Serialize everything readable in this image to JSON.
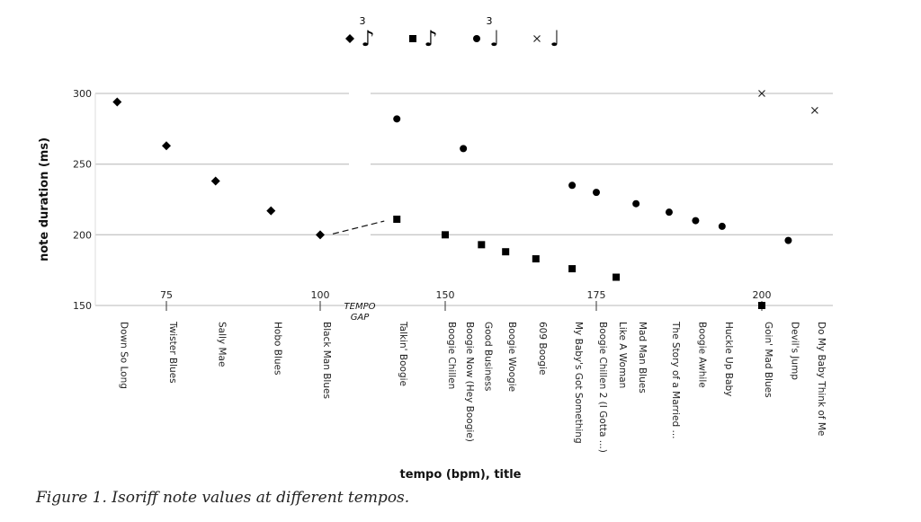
{
  "chart_data": {
    "type": "scatter",
    "title": "",
    "xlabel": "tempo (bpm), title",
    "ylabel": "note duration (ms)",
    "ylim": [
      150,
      300
    ],
    "yticks": [
      150,
      200,
      250,
      300
    ],
    "xticks": [
      75,
      100,
      150,
      175,
      200
    ],
    "gap_label": [
      "TEMPO",
      "GAP"
    ],
    "grid": true,
    "legend": {
      "placement": "top-center",
      "entries": [
        {
          "series": "triplet-eighth",
          "marker": "diamond",
          "note": "eighth",
          "tuplet": "3"
        },
        {
          "series": "eighth",
          "marker": "square",
          "note": "eighth",
          "tuplet": ""
        },
        {
          "series": "triplet-quarter",
          "marker": "circle",
          "note": "quarter",
          "tuplet": "3"
        },
        {
          "series": "quarter",
          "marker": "x",
          "note": "quarter",
          "tuplet": ""
        }
      ]
    },
    "songs": [
      {
        "title": "Down So Long",
        "tempo": 67
      },
      {
        "title": "Twister Blues",
        "tempo": 75
      },
      {
        "title": "Sally Mae",
        "tempo": 83
      },
      {
        "title": "Hobo Blues",
        "tempo": 92
      },
      {
        "title": "Black Man Blues",
        "tempo": 100
      },
      {
        "title": "Talkin' Boogie",
        "tempo": 142
      },
      {
        "title": "Boogie Chillen",
        "tempo": 150
      },
      {
        "title": "Boogie Now (Hey Boogie)",
        "tempo": 153
      },
      {
        "title": "Good Business",
        "tempo": 156
      },
      {
        "title": "Boogie Woogie",
        "tempo": 160
      },
      {
        "title": "609 Boogie",
        "tempo": 165
      },
      {
        "title": "My Baby's Got Something",
        "tempo": 171
      },
      {
        "title": "Boogie Chillen 2 (I Gotta ...)",
        "tempo": 175
      },
      {
        "title": "Like A Woman",
        "tempo": 178
      },
      {
        "title": "Mad Man Blues",
        "tempo": 181
      },
      {
        "title": "The Story of a Married ...",
        "tempo": 186
      },
      {
        "title": "Boogie Awhile",
        "tempo": 190
      },
      {
        "title": "Huckle Up Baby",
        "tempo": 194
      },
      {
        "title": "Goin' Mad Blues",
        "tempo": 200
      },
      {
        "title": "Devil's Jump",
        "tempo": 204
      },
      {
        "title": "Do My Baby Think of Me",
        "tempo": 208
      }
    ],
    "points": [
      {
        "song": "Down So Long",
        "marker": "diamond",
        "ms": 294
      },
      {
        "song": "Twister Blues",
        "marker": "diamond",
        "ms": 263
      },
      {
        "song": "Sally Mae",
        "marker": "diamond",
        "ms": 238
      },
      {
        "song": "Hobo Blues",
        "marker": "diamond",
        "ms": 217
      },
      {
        "song": "Black Man Blues",
        "marker": "diamond",
        "ms": 200
      },
      {
        "song": "Talkin' Boogie",
        "marker": "circle",
        "ms": 282
      },
      {
        "song": "Talkin' Boogie",
        "marker": "square",
        "ms": 211
      },
      {
        "song": "Boogie Chillen",
        "marker": "square",
        "ms": 200
      },
      {
        "song": "Boogie Now (Hey Boogie)",
        "marker": "circle",
        "ms": 261
      },
      {
        "song": "Good Business",
        "marker": "square",
        "ms": 193
      },
      {
        "song": "Boogie Woogie",
        "marker": "square",
        "ms": 188
      },
      {
        "song": "609 Boogie",
        "marker": "square",
        "ms": 183
      },
      {
        "song": "My Baby's Got Something",
        "marker": "circle",
        "ms": 235
      },
      {
        "song": "My Baby's Got Something",
        "marker": "square",
        "ms": 176
      },
      {
        "song": "Boogie Chillen 2 (I Gotta ...)",
        "marker": "circle",
        "ms": 230
      },
      {
        "song": "Like A Woman",
        "marker": "square",
        "ms": 170
      },
      {
        "song": "Mad Man Blues",
        "marker": "circle",
        "ms": 222
      },
      {
        "song": "The Story of a Married ...",
        "marker": "circle",
        "ms": 216
      },
      {
        "song": "Boogie Awhile",
        "marker": "circle",
        "ms": 210
      },
      {
        "song": "Huckle Up Baby",
        "marker": "circle",
        "ms": 206
      },
      {
        "song": "Goin' Mad Blues",
        "marker": "square",
        "ms": 150
      },
      {
        "song": "Goin' Mad Blues",
        "marker": "x",
        "ms": 300
      },
      {
        "song": "Devil's Jump",
        "marker": "circle",
        "ms": 196
      },
      {
        "song": "Do My Baby Think of Me",
        "marker": "x",
        "ms": 288
      }
    ]
  },
  "caption": "Figure 1. Isoriff note values at different tempos."
}
